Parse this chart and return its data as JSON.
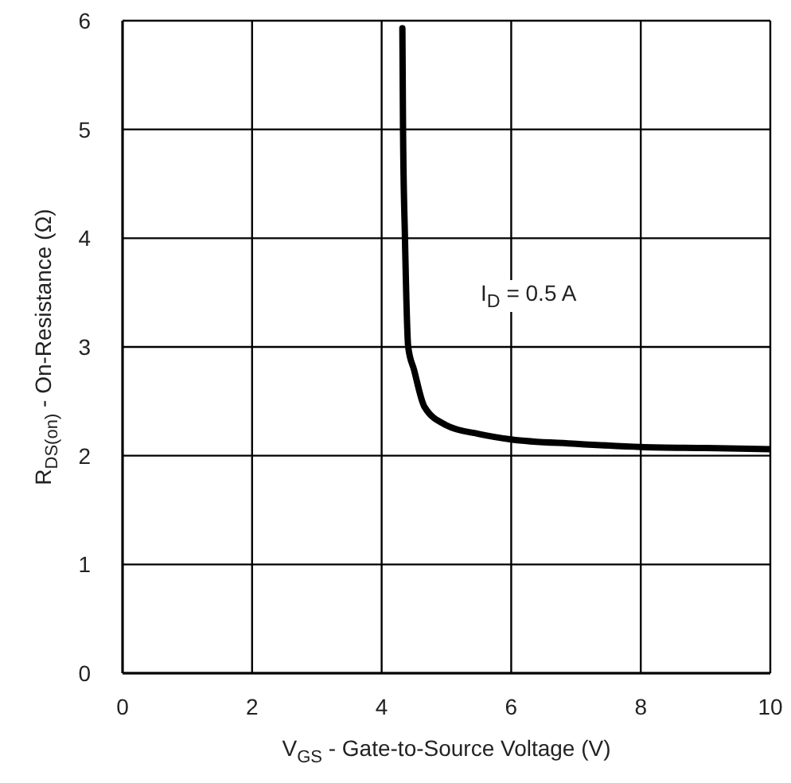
{
  "chart_data": {
    "type": "line",
    "xlabel": "V$_{GS}$ - Gate-to-Source Voltage (V)",
    "ylabel": "R$_{DS(on)}$ - On-Resistance (Ω)",
    "annotations": [
      "I$_{D}$ = 0.5 A"
    ],
    "x": [
      4.32,
      4.33,
      4.36,
      4.41,
      4.5,
      4.66,
      5.0,
      5.5,
      6.0,
      7.0,
      8.0,
      9.0,
      10.0
    ],
    "series": [
      {
        "color": "#000000",
        "values": [
          5.93,
          5.0,
          4.0,
          3.0,
          2.79,
          2.45,
          2.28,
          2.2,
          2.15,
          2.11,
          2.08,
          2.07,
          2.06
        ]
      }
    ],
    "xlim": [
      0,
      10
    ],
    "xticks": [
      0,
      2,
      4,
      6,
      8,
      10
    ],
    "ylim": [
      0,
      6
    ],
    "yticks": [
      0,
      1,
      2,
      3,
      4,
      5,
      6
    ],
    "grid": true,
    "marker": "none",
    "line_style": "solid"
  }
}
